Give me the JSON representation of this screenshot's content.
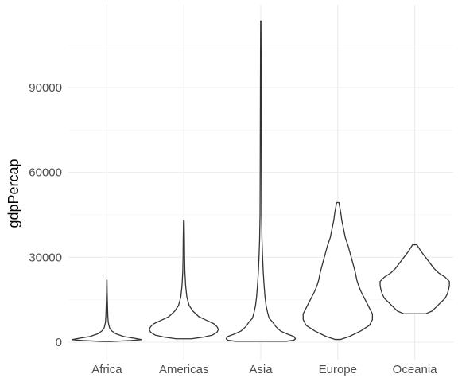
{
  "chart_data": {
    "type": "violin",
    "title": "",
    "xlabel": "",
    "ylabel": "gdpPercap",
    "ylim": [
      0,
      113523
    ],
    "y_ticks": [
      0,
      30000,
      60000,
      90000
    ],
    "y_tick_labels": [
      "0",
      "30000",
      "60000",
      "90000"
    ],
    "grid": true,
    "categories": [
      "Africa",
      "Americas",
      "Asia",
      "Europe",
      "Oceania"
    ],
    "violins": [
      {
        "category": "Africa",
        "min": 241,
        "max": 21951,
        "profile": [
          [
            241,
            0.1
          ],
          [
            600,
            0.6
          ],
          [
            900,
            0.86
          ],
          [
            1300,
            0.72
          ],
          [
            2000,
            0.42
          ],
          [
            3000,
            0.22
          ],
          [
            4000,
            0.12
          ],
          [
            5000,
            0.07
          ],
          [
            6000,
            0.05
          ],
          [
            7000,
            0.035
          ],
          [
            9000,
            0.025
          ],
          [
            12000,
            0.018
          ],
          [
            15000,
            0.012
          ],
          [
            18000,
            0.007
          ],
          [
            21951,
            0.003
          ]
        ]
      },
      {
        "category": "Americas",
        "min": 1202,
        "max": 42952,
        "profile": [
          [
            1202,
            0.05
          ],
          [
            1800,
            0.13
          ],
          [
            2500,
            0.19
          ],
          [
            3500,
            0.22
          ],
          [
            4500,
            0.23
          ],
          [
            5500,
            0.22
          ],
          [
            6500,
            0.2
          ],
          [
            7500,
            0.16
          ],
          [
            9000,
            0.1
          ],
          [
            11000,
            0.06
          ],
          [
            13000,
            0.035
          ],
          [
            16000,
            0.02
          ],
          [
            20000,
            0.012
          ],
          [
            25000,
            0.007
          ],
          [
            30000,
            0.005
          ],
          [
            36000,
            0.004
          ],
          [
            42952,
            0.002
          ]
        ]
      },
      {
        "category": "Asia",
        "min": 331,
        "max": 113523,
        "profile": [
          [
            331,
            0.17
          ],
          [
            700,
            0.22
          ],
          [
            1200,
            0.23
          ],
          [
            2000,
            0.22
          ],
          [
            3000,
            0.17
          ],
          [
            4000,
            0.13
          ],
          [
            5500,
            0.1
          ],
          [
            7000,
            0.08
          ],
          [
            8500,
            0.055
          ],
          [
            10500,
            0.045
          ],
          [
            13000,
            0.035
          ],
          [
            16000,
            0.028
          ],
          [
            20000,
            0.022
          ],
          [
            25000,
            0.016
          ],
          [
            30000,
            0.012
          ],
          [
            36000,
            0.008
          ],
          [
            45000,
            0.005
          ],
          [
            60000,
            0.004
          ],
          [
            80000,
            0.003
          ],
          [
            100000,
            0.002
          ],
          [
            113523,
            0.001
          ]
        ]
      },
      {
        "category": "Europe",
        "min": 974,
        "max": 49357,
        "profile": [
          [
            974,
            0.005
          ],
          [
            2000,
            0.02
          ],
          [
            4000,
            0.04
          ],
          [
            6000,
            0.055
          ],
          [
            8000,
            0.06
          ],
          [
            10000,
            0.06
          ],
          [
            12000,
            0.055
          ],
          [
            14000,
            0.05
          ],
          [
            16000,
            0.045
          ],
          [
            18000,
            0.04
          ],
          [
            20000,
            0.036
          ],
          [
            22000,
            0.033
          ],
          [
            25000,
            0.03
          ],
          [
            28000,
            0.026
          ],
          [
            31000,
            0.022
          ],
          [
            34000,
            0.018
          ],
          [
            37000,
            0.013
          ],
          [
            40000,
            0.01
          ],
          [
            43000,
            0.007
          ],
          [
            46000,
            0.005
          ],
          [
            49357,
            0.002
          ]
        ]
      },
      {
        "category": "Oceania",
        "min": 10040,
        "max": 34435,
        "profile": [
          [
            10040,
            0.025
          ],
          [
            11000,
            0.04
          ],
          [
            12500,
            0.05
          ],
          [
            14000,
            0.06
          ],
          [
            15500,
            0.07
          ],
          [
            17000,
            0.075
          ],
          [
            18500,
            0.078
          ],
          [
            20000,
            0.08
          ],
          [
            21500,
            0.08
          ],
          [
            23000,
            0.07
          ],
          [
            24500,
            0.055
          ],
          [
            26000,
            0.045
          ],
          [
            28000,
            0.035
          ],
          [
            30000,
            0.025
          ],
          [
            32000,
            0.015
          ],
          [
            34435,
            0.005
          ]
        ]
      }
    ]
  }
}
